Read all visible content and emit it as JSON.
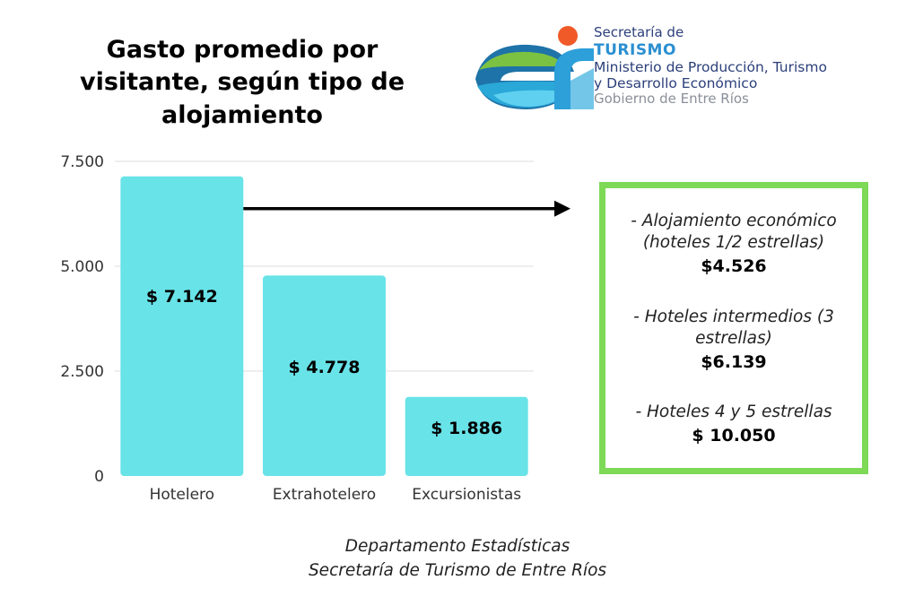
{
  "title": "Gasto promedio por\nvisitante, según tipo de\nalojamiento",
  "logo": {
    "line1": "Secretaría de",
    "line2": "TURISMO",
    "line3": "Ministerio de Producción, Turismo",
    "line4": "y Desarrollo Económico",
    "line5": "Gobierno de Entre Ríos"
  },
  "chart_data": {
    "type": "bar",
    "categories": [
      "Hotelero",
      "Extrahotelero",
      "Excursionistas"
    ],
    "values": [
      7142,
      4778,
      1886
    ],
    "data_labels": [
      "$ 7.142",
      "$ 4.778",
      "$ 1.886"
    ],
    "yticks": [
      0,
      2500,
      5000,
      7500
    ],
    "ytick_labels": [
      "0",
      "2.500",
      "5.000",
      "7.500"
    ],
    "ylim": [
      0,
      7500
    ],
    "grid": true,
    "bar_color": "#68e3e8",
    "grid_color": "#dddddd",
    "arrow_color": "#000000"
  },
  "info_box": {
    "border_color": "#7ed957",
    "items": [
      {
        "label": "- Alojamiento económico (hoteles 1/2 estrellas)",
        "value": "$4.526"
      },
      {
        "label": "- Hoteles intermedios (3 estrellas)",
        "value": "$6.139"
      },
      {
        "label": "- Hoteles 4 y 5 estrellas",
        "value": "$ 10.050"
      }
    ]
  },
  "footer": {
    "line1": "Departamento Estadísticas",
    "line2": "Secretaría de Turismo de Entre Ríos"
  }
}
